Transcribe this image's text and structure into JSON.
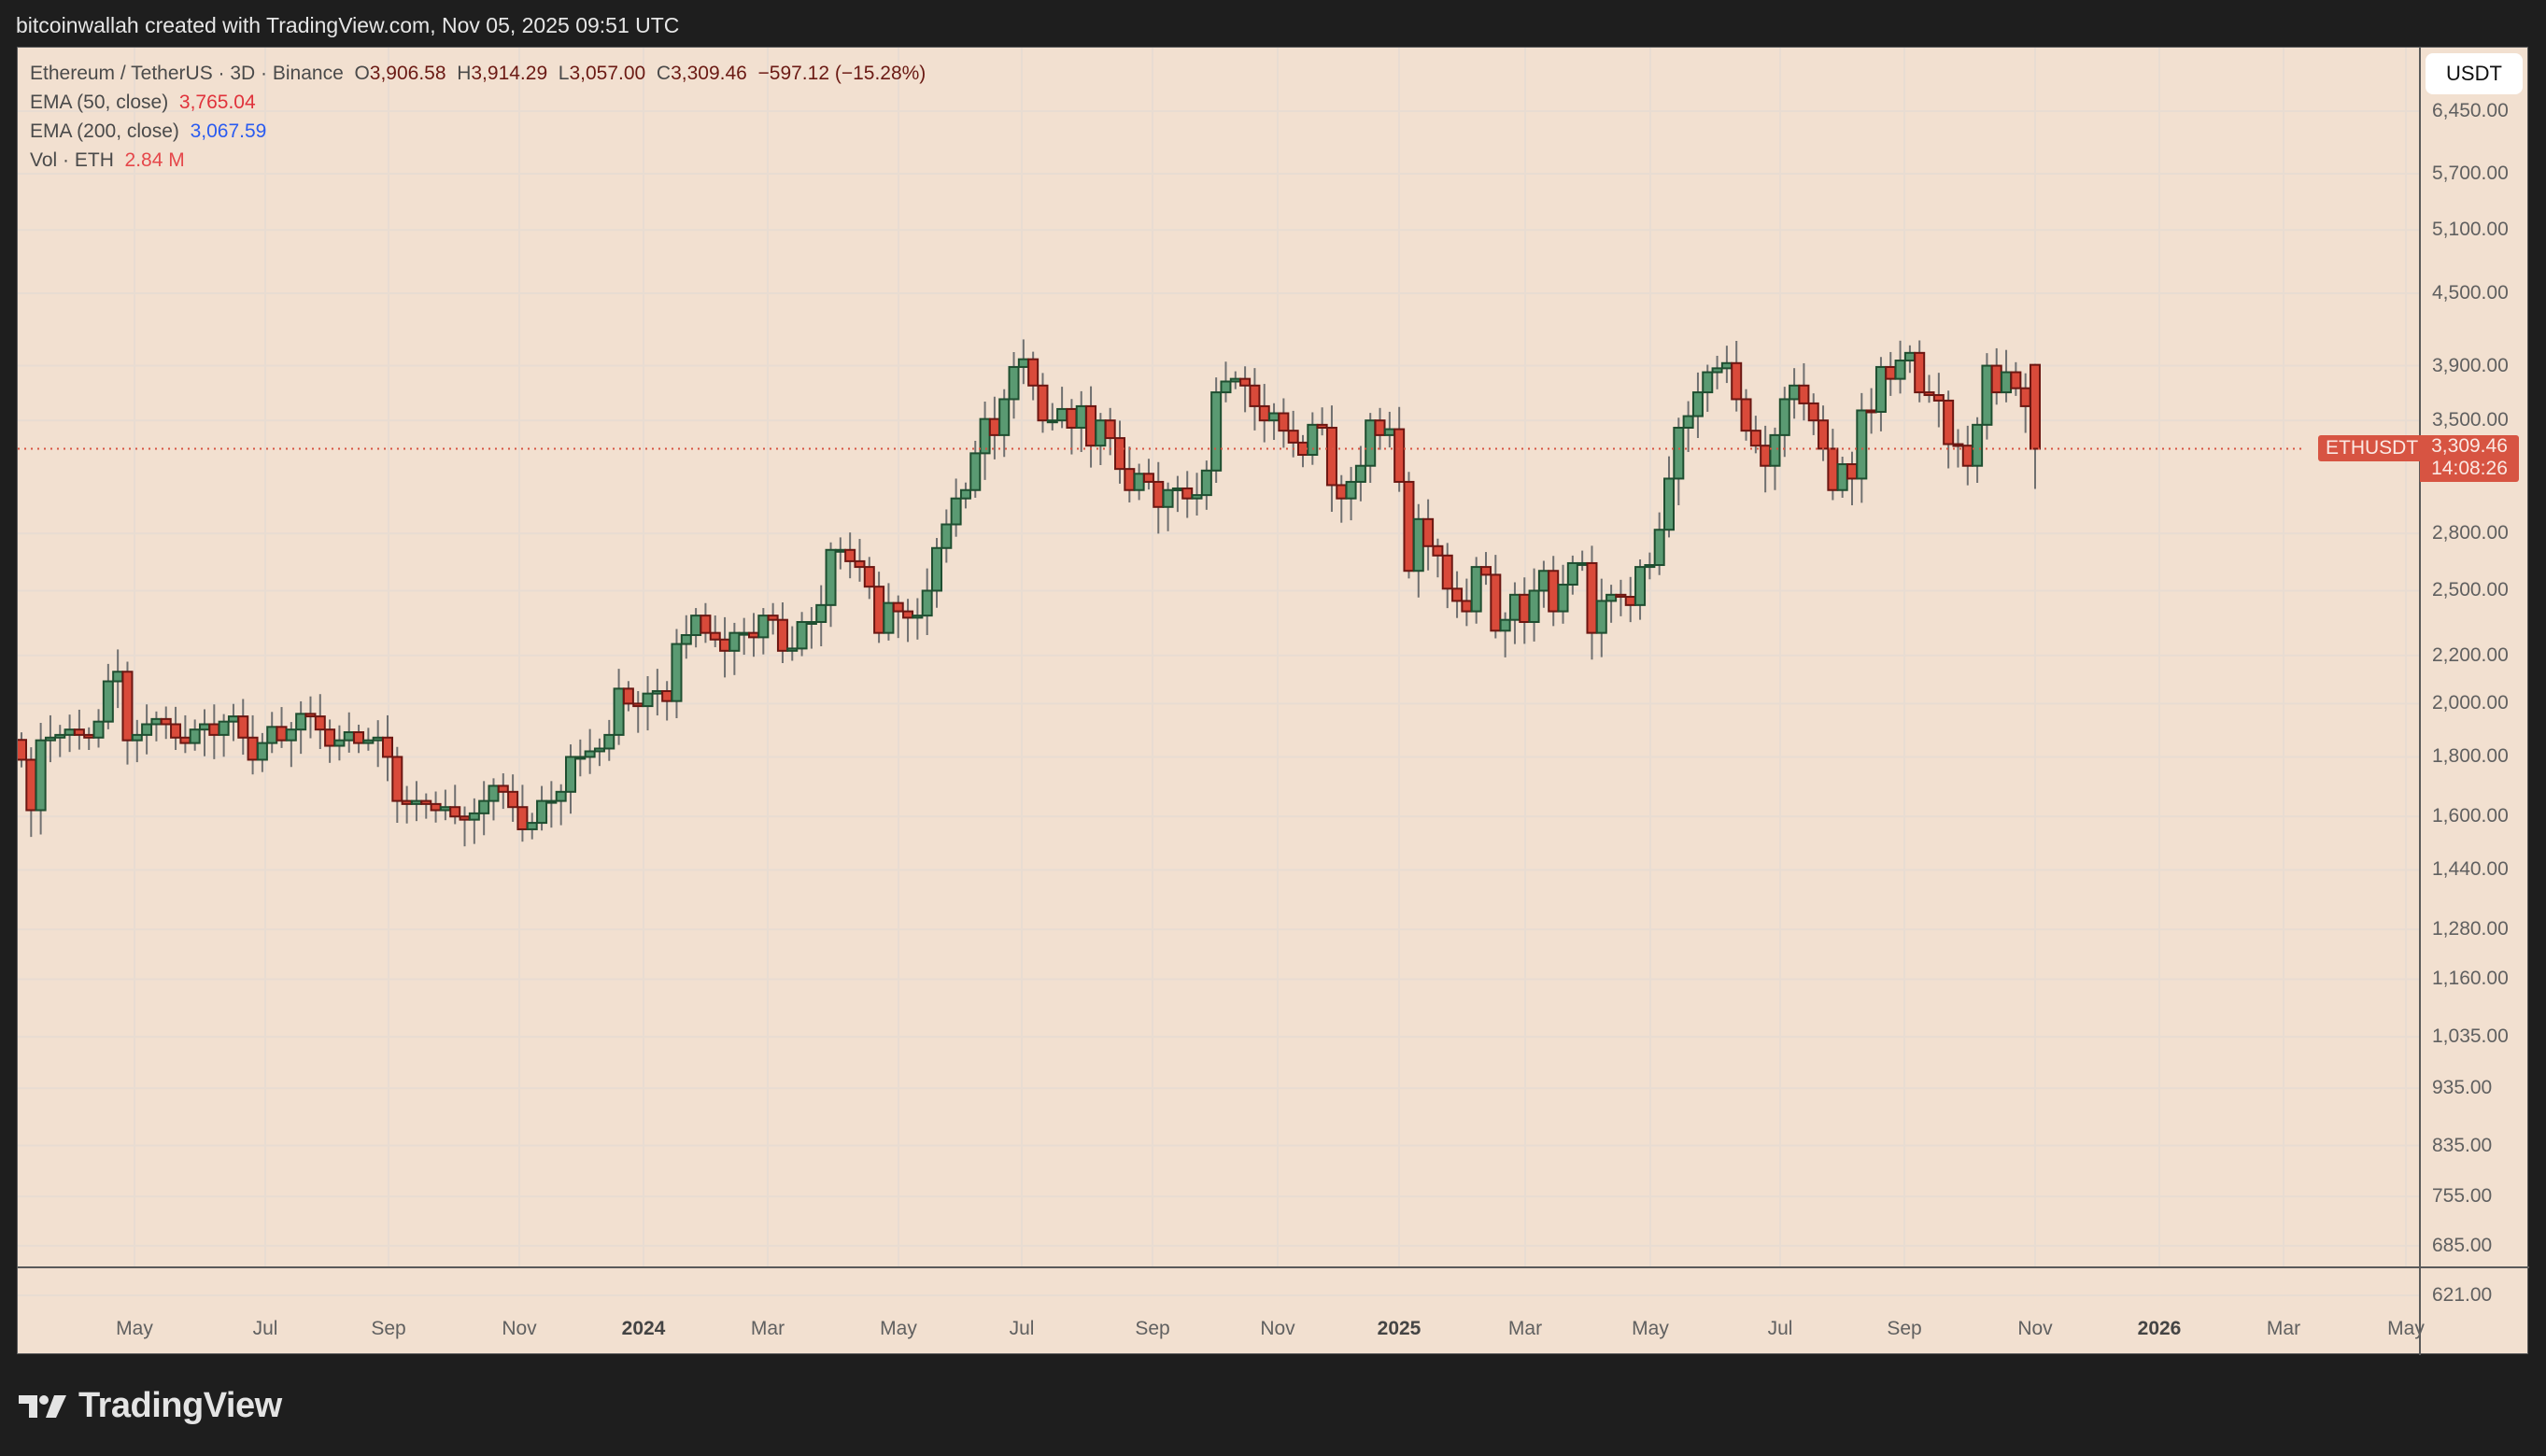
{
  "header": {
    "attribution": "bitcoinwallah created with TradingView.com, Nov 05, 2025 09:51 UTC"
  },
  "legend": {
    "symbol": "Ethereum / TetherUS · 3D · Binance",
    "open_label": "O",
    "open": "3,906.58",
    "high_label": "H",
    "high": "3,914.29",
    "low_label": "L",
    "low": "3,057.00",
    "close_label": "C",
    "close": "3,309.46",
    "change": "−597.12 (−15.28%)",
    "ema50_label": "EMA (50, close)",
    "ema50_value": "3,765.04",
    "ema200_label": "EMA (200, close)",
    "ema200_value": "3,067.59",
    "vol_label": "Vol · ETH",
    "vol_value": "2.84 M"
  },
  "price_axis": {
    "currency": "USDT",
    "ticks": [
      "6,450.00",
      "5,700.00",
      "5,100.00",
      "4,500.00",
      "3,900.00",
      "3,500.00",
      "2,800.00",
      "2,500.00",
      "2,200.00",
      "2,000.00",
      "1,800.00",
      "1,600.00",
      "1,440.00",
      "1,280.00",
      "1,160.00",
      "1,035.00",
      "935.00",
      "835.00",
      "755.00",
      "685.00",
      "621.00"
    ]
  },
  "last_price": {
    "symbol": "ETHUSDT",
    "price": "3,309.46",
    "countdown": "14:08:26"
  },
  "time_axis": {
    "labels": [
      "May",
      "Jul",
      "Sep",
      "Nov",
      "2024",
      "Mar",
      "May",
      "Jul",
      "Sep",
      "Nov",
      "2025",
      "Mar",
      "May",
      "Jul",
      "Sep",
      "Nov",
      "2026",
      "Mar",
      "May"
    ]
  },
  "footer": {
    "brand": "TradingView"
  },
  "colors": {
    "background": "#f2e0d0",
    "up_body": "#5a9a72",
    "up_border": "#1f4e30",
    "down_body": "#d94a3a",
    "down_border": "#6b1712",
    "wick": "#707070",
    "grid": "#e8dcd2",
    "last_price": "#d75442"
  },
  "chart_data": {
    "type": "candlestick",
    "title": "Ethereum / TetherUS · 3D · Binance",
    "xlabel": "",
    "ylabel": "USDT",
    "y_scale": "log",
    "ylim": [
      621,
      6450
    ],
    "y_ticks": [
      6450,
      5700,
      5100,
      4500,
      3900,
      3500,
      2800,
      2500,
      2200,
      2000,
      1800,
      1600,
      1440,
      1280,
      1160,
      1035,
      935,
      835,
      755,
      685,
      621
    ],
    "x_ticks": [
      "May",
      "Jul",
      "Sep",
      "Nov",
      "2024",
      "Mar",
      "May",
      "Jul",
      "Sep",
      "Nov",
      "2025",
      "Mar",
      "May",
      "Jul",
      "Sep",
      "Nov",
      "2026",
      "Mar",
      "May"
    ],
    "grid": true,
    "last_bar": {
      "open": 3906.58,
      "high": 3914.29,
      "low": 3057.0,
      "close": 3309.46,
      "change": -597.12,
      "change_pct": -15.28
    },
    "indicators": [
      {
        "name": "EMA (50, close)",
        "value": 3765.04,
        "visible_on_chart": false
      },
      {
        "name": "EMA (200, close)",
        "value": 3067.59,
        "visible_on_chart": false
      },
      {
        "name": "Vol · ETH",
        "value": "2.84 M",
        "visible_on_chart": false
      }
    ],
    "approx_closes": [
      1790,
      1620,
      1860,
      1870,
      1880,
      1900,
      1880,
      1870,
      1930,
      2090,
      2130,
      1860,
      1880,
      1920,
      1940,
      1920,
      1870,
      1850,
      1900,
      1920,
      1880,
      1930,
      1950,
      1870,
      1790,
      1850,
      1910,
      1860,
      1900,
      1960,
      1950,
      1900,
      1840,
      1860,
      1890,
      1850,
      1860,
      1870,
      1800,
      1650,
      1640,
      1650,
      1640,
      1620,
      1630,
      1600,
      1590,
      1610,
      1650,
      1700,
      1680,
      1630,
      1560,
      1580,
      1650,
      1650,
      1680,
      1800,
      1800,
      1820,
      1830,
      1880,
      2060,
      2000,
      1990,
      2040,
      2050,
      2010,
      2250,
      2290,
      2380,
      2300,
      2270,
      2220,
      2300,
      2300,
      2280,
      2380,
      2360,
      2220,
      2230,
      2350,
      2350,
      2430,
      2710,
      2710,
      2650,
      2620,
      2520,
      2300,
      2440,
      2400,
      2370,
      2380,
      2500,
      2720,
      2850,
      3000,
      3050,
      3280,
      3510,
      3400,
      3650,
      3890,
      3950,
      3750,
      3500,
      3500,
      3580,
      3450,
      3600,
      3330,
      3500,
      3380,
      3180,
      3050,
      3150,
      3100,
      2950,
      3050,
      3060,
      3000,
      3020,
      3170,
      3700,
      3780,
      3800,
      3750,
      3600,
      3500,
      3550,
      3430,
      3350,
      3270,
      3470,
      3450,
      3080,
      3000,
      3100,
      3200,
      3500,
      3400,
      3440,
      3100,
      2600,
      2880,
      2730,
      2680,
      2510,
      2450,
      2400,
      2620,
      2580,
      2310,
      2360,
      2480,
      2350,
      2500,
      2600,
      2400,
      2530,
      2640,
      2640,
      2300,
      2450,
      2480,
      2470,
      2430,
      2620,
      2630,
      2820,
      3120,
      3450,
      3530,
      3700,
      3850,
      3880,
      3920,
      3650,
      3430,
      3330,
      3200,
      3400,
      3650,
      3750,
      3620,
      3500,
      3310,
      3050,
      3210,
      3120,
      3570,
      3560,
      3890,
      3800,
      3940,
      4000,
      3700,
      3680,
      3640,
      3340,
      3330,
      3200,
      3470,
      3900,
      3700,
      3850,
      3730,
      3600,
      3470
    ],
    "note": "Approximate 3-day closes read off the log price scale, Mar 2023 → Nov 2025 (rendered candles use a subset)"
  }
}
